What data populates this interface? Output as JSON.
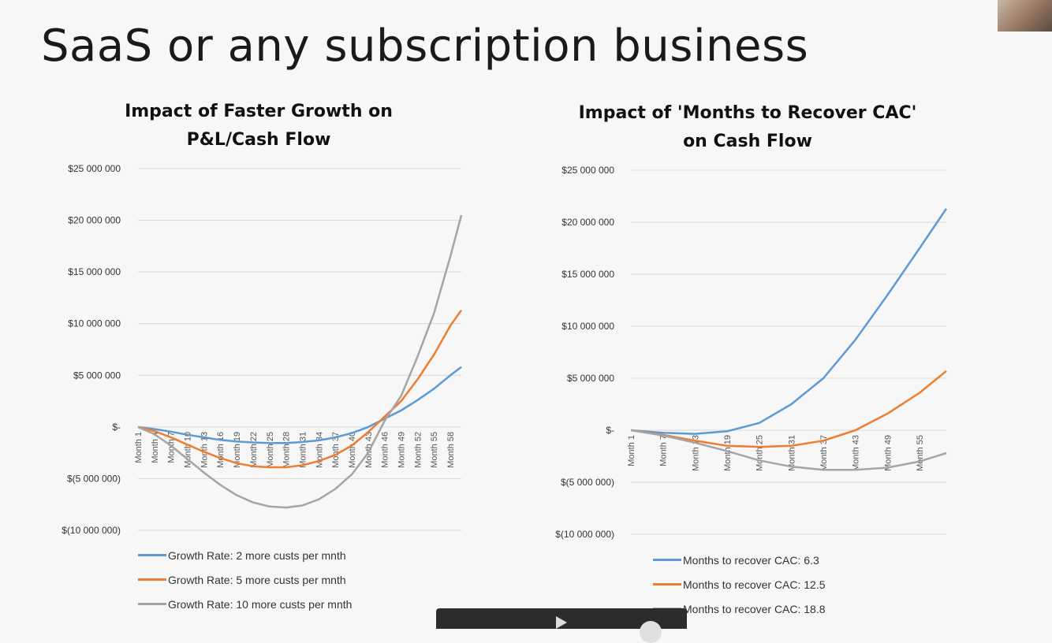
{
  "slide": {
    "title": "SaaS or any subscription business"
  },
  "chart_data": [
    {
      "type": "line",
      "title_lines": [
        "Impact of Faster Growth on",
        "P&L/Cash Flow"
      ],
      "ylim": [
        -10000000,
        25000000
      ],
      "yticks": [
        25000000,
        20000000,
        15000000,
        10000000,
        5000000,
        0,
        -5000000,
        -10000000
      ],
      "ytick_labels": [
        "$25 000 000",
        "$20 000 000",
        "$15 000 000",
        "$10 000 000",
        "$5 000 000",
        "$-",
        "$(5 000 000)",
        "$(10 000 000)"
      ],
      "x_min": 1,
      "x_max": 60,
      "xtick_labels": [
        "Month 1",
        "Month 4",
        "Month 7",
        "Month 10",
        "Month 13",
        "Month 16",
        "Month 19",
        "Month 22",
        "Month 25",
        "Month 28",
        "Month 31",
        "Month 34",
        "Month 37",
        "Month 40",
        "Month 43",
        "Month 46",
        "Month 49",
        "Month 52",
        "Month 55",
        "Month 58"
      ],
      "xtick_months": [
        1,
        4,
        7,
        10,
        13,
        16,
        19,
        22,
        25,
        28,
        31,
        34,
        37,
        40,
        43,
        46,
        49,
        52,
        55,
        58
      ],
      "grid": true,
      "legend_position": "bottom",
      "series": [
        {
          "name": "Growth Rate: 2 more custs per mnth",
          "color": "#5b9bd5",
          "x": [
            1,
            4,
            7,
            10,
            13,
            16,
            19,
            22,
            25,
            28,
            31,
            34,
            37,
            40,
            43,
            46,
            49,
            52,
            55,
            58,
            60
          ],
          "values": [
            0,
            -200000,
            -450000,
            -750000,
            -1000000,
            -1250000,
            -1400000,
            -1500000,
            -1550000,
            -1550000,
            -1450000,
            -1300000,
            -1000000,
            -600000,
            0,
            800000,
            1600000,
            2600000,
            3700000,
            5000000,
            5800000
          ]
        },
        {
          "name": "Growth Rate: 5 more custs per mnth",
          "color": "#ed7d31",
          "x": [
            1,
            4,
            7,
            10,
            13,
            16,
            19,
            22,
            25,
            28,
            31,
            34,
            37,
            40,
            43,
            46,
            49,
            52,
            55,
            58,
            60
          ],
          "values": [
            0,
            -400000,
            -1000000,
            -1700000,
            -2400000,
            -3000000,
            -3500000,
            -3800000,
            -3900000,
            -3900000,
            -3700000,
            -3300000,
            -2700000,
            -1800000,
            -500000,
            1000000,
            2500000,
            4600000,
            7000000,
            9800000,
            11300000
          ]
        },
        {
          "name": "Growth Rate: 10 more custs per mnth",
          "color": "#a5a5a5",
          "x": [
            1,
            4,
            7,
            10,
            13,
            16,
            19,
            22,
            25,
            28,
            31,
            34,
            37,
            40,
            43,
            46,
            49,
            52,
            55,
            58,
            60
          ],
          "values": [
            0,
            -700000,
            -1800000,
            -3100000,
            -4400000,
            -5600000,
            -6600000,
            -7300000,
            -7700000,
            -7800000,
            -7600000,
            -7000000,
            -6000000,
            -4600000,
            -2500000,
            600000,
            3000000,
            6800000,
            11000000,
            16500000,
            20500000
          ]
        }
      ]
    },
    {
      "type": "line",
      "title_lines": [
        "Impact of 'Months to Recover CAC'",
        "on Cash Flow"
      ],
      "ylim": [
        -10000000,
        25000000
      ],
      "yticks": [
        25000000,
        20000000,
        15000000,
        10000000,
        5000000,
        0,
        -5000000,
        -10000000
      ],
      "ytick_labels": [
        "$25 000 000",
        "$20 000 000",
        "$15 000 000",
        "$10 000 000",
        "$5 000 000",
        "$-",
        "$(5 000 000)",
        "$(10 000 000)"
      ],
      "x_min": 1,
      "x_max": 60,
      "xtick_labels": [
        "Month 1",
        "Month 7",
        "Month 13",
        "Month 19",
        "Month 25",
        "Month 31",
        "Month 37",
        "Month 43",
        "Month 49",
        "Month 55"
      ],
      "xtick_months": [
        1,
        7,
        13,
        19,
        25,
        31,
        37,
        43,
        49,
        55
      ],
      "grid": true,
      "legend_position": "bottom",
      "series": [
        {
          "name": "Months to recover CAC: 6.3",
          "color": "#5b9bd5",
          "x": [
            1,
            7,
            13,
            19,
            25,
            31,
            37,
            43,
            49,
            55,
            60
          ],
          "values": [
            0,
            -250000,
            -350000,
            -100000,
            700000,
            2500000,
            5000000,
            8700000,
            13000000,
            17500000,
            21300000
          ]
        },
        {
          "name": "Months to recover CAC: 12.5",
          "color": "#ed7d31",
          "x": [
            1,
            7,
            13,
            19,
            25,
            31,
            37,
            43,
            49,
            55,
            60
          ],
          "values": [
            0,
            -450000,
            -1000000,
            -1500000,
            -1600000,
            -1500000,
            -1000000,
            0,
            1600000,
            3600000,
            5700000
          ]
        },
        {
          "name": "Months to recover CAC: 18.8",
          "color": "#a5a5a5",
          "x": [
            1,
            7,
            13,
            19,
            25,
            31,
            37,
            43,
            49,
            55,
            60
          ],
          "values": [
            0,
            -500000,
            -1200000,
            -2000000,
            -2900000,
            -3500000,
            -3800000,
            -3800000,
            -3600000,
            -3000000,
            -2200000
          ]
        }
      ]
    }
  ]
}
